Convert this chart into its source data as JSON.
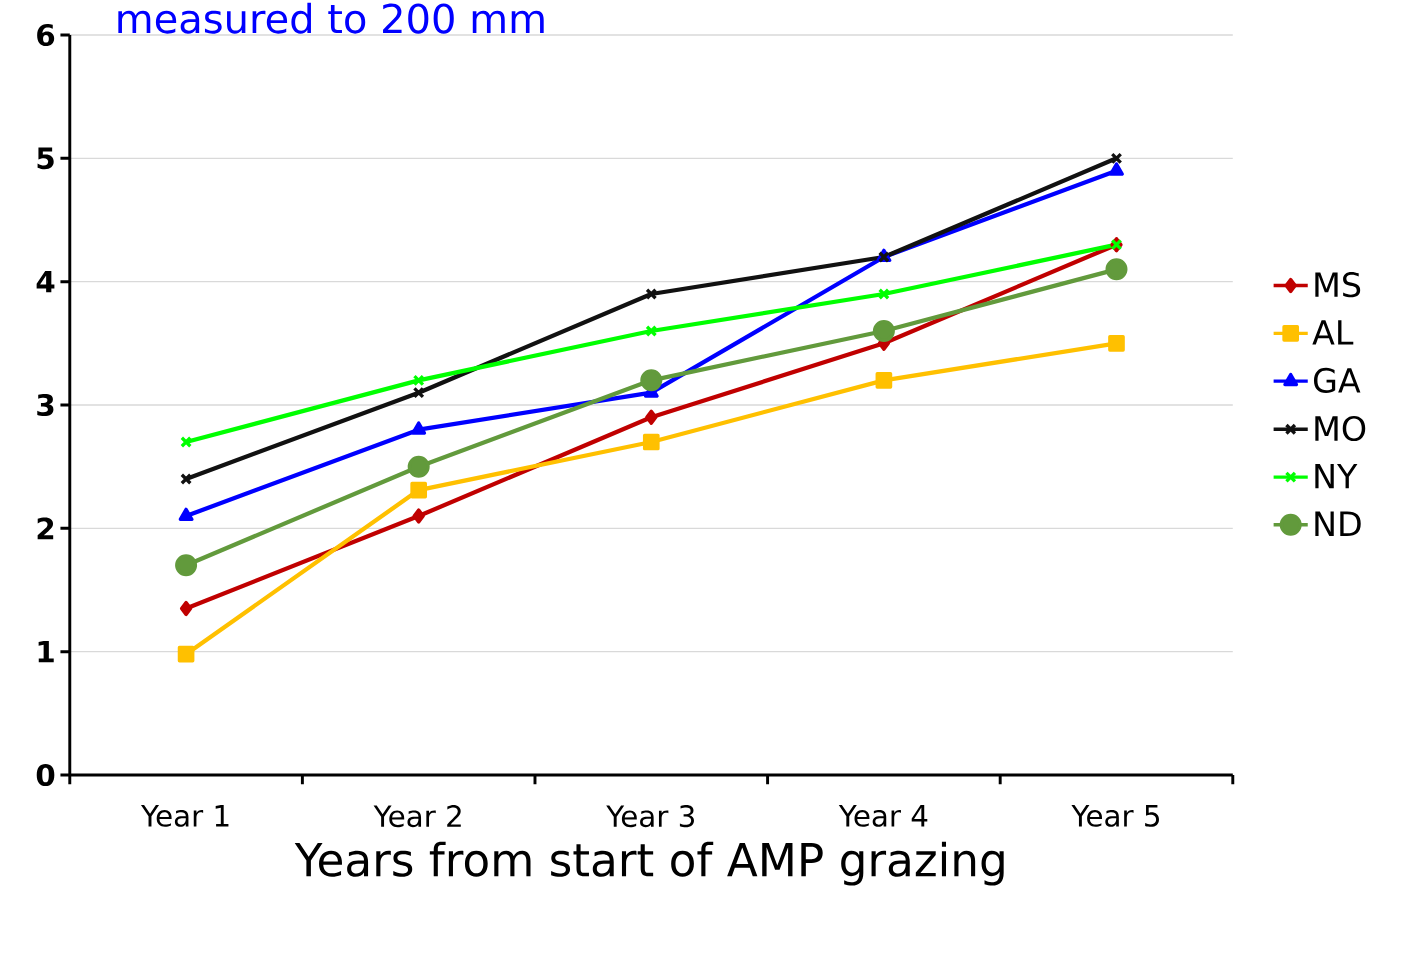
{
  "chart_data": {
    "type": "line",
    "title": "measured to 200 mm",
    "xlabel": "Years from start of  AMP grazing",
    "categories": [
      "Year 1",
      "Year 2",
      "Year 3",
      "Year 4",
      "Year 5"
    ],
    "ylim": [
      0,
      6
    ],
    "yticks": [
      0,
      1,
      2,
      3,
      4,
      5,
      6
    ],
    "grid": "y",
    "legend": "right",
    "line_style": "solid",
    "series": [
      {
        "name": "MS",
        "color": "#c00000",
        "marker": "diamond",
        "values": [
          1.35,
          2.1,
          2.9,
          3.5,
          4.3
        ]
      },
      {
        "name": "AL",
        "color": "#ffc000",
        "marker": "square",
        "values": [
          0.98,
          2.31,
          2.7,
          3.2,
          3.5
        ]
      },
      {
        "name": "GA",
        "color": "#0000ff",
        "marker": "triangle",
        "values": [
          2.1,
          2.8,
          3.1,
          4.2,
          4.9
        ]
      },
      {
        "name": "MO",
        "color": "#111111",
        "marker": "cross",
        "values": [
          2.4,
          3.1,
          3.9,
          4.2,
          5.0
        ]
      },
      {
        "name": "NY",
        "color": "#00ff00",
        "marker": "cross",
        "values": [
          2.7,
          3.2,
          3.6,
          3.9,
          4.3
        ]
      },
      {
        "name": "ND",
        "color": "#629a3c",
        "marker": "circle",
        "values": [
          1.7,
          2.5,
          3.2,
          3.6,
          4.1
        ]
      }
    ]
  }
}
